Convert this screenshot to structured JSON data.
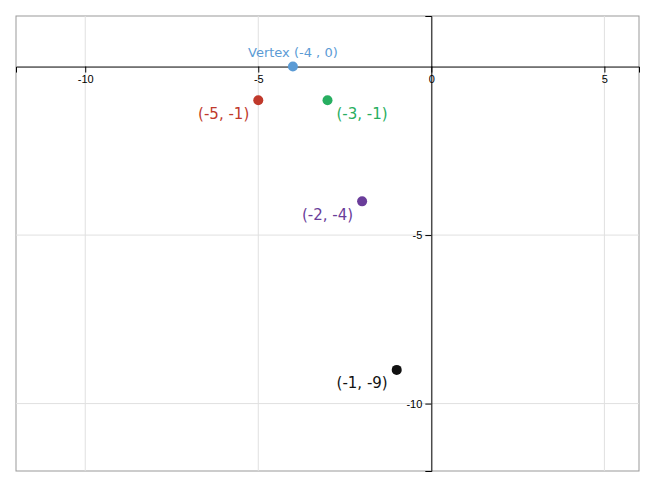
{
  "chart_data": {
    "type": "scatter",
    "x": [
      -4,
      -5,
      -3,
      -2,
      -1
    ],
    "values": [
      0,
      -1,
      -1,
      -4,
      -9
    ],
    "colors": [
      "#5b9bd5",
      "#c0392b",
      "#27ae60",
      "#6a3d9a",
      "#111111"
    ],
    "value_labels": [
      "Vertex (-4 , 0)",
      "(-5, -1)",
      "(-3, -1)",
      "(-2, -4)",
      "(-1, -9)"
    ],
    "data_labels": true,
    "xlim": [
      -12,
      6
    ],
    "ylim": [
      -12,
      1.5
    ],
    "xticks": [
      -10,
      -5,
      0,
      5
    ],
    "yticks": [
      -10,
      -5
    ],
    "grid": true
  }
}
